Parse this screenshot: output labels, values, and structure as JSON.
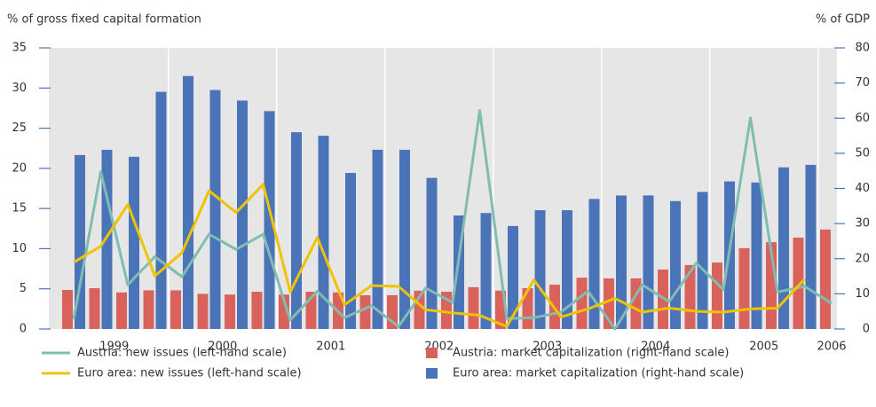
{
  "chart_data": {
    "type": "combo",
    "y_label": "% of gross fixed capital formation",
    "y2_label": "% of GDP",
    "categories": [
      "1999",
      null,
      null,
      null,
      "2000",
      null,
      null,
      null,
      "2001",
      null,
      null,
      null,
      "2002",
      null,
      null,
      null,
      "2003",
      null,
      null,
      null,
      "2004",
      null,
      null,
      null,
      "2005",
      null,
      null,
      null,
      "2006"
    ],
    "ylim": [
      0,
      35
    ],
    "yticks": [
      0,
      5,
      10,
      15,
      20,
      25,
      30,
      35
    ],
    "y2lim": [
      0,
      80
    ],
    "y2ticks": [
      0,
      10,
      20,
      30,
      40,
      50,
      60,
      70,
      80
    ],
    "series": [
      {
        "name": "Austria: new issues (left-hand scale)",
        "type": "line",
        "color": "#80bdb0",
        "values": [
          1.2,
          19.6,
          5.5,
          9,
          6.5,
          11.8,
          9.9,
          11.8,
          1.1,
          4.7,
          1.4,
          2.9,
          0.3,
          5.1,
          3.3,
          27.2,
          1.3,
          1.4,
          2.1,
          4.7,
          0,
          5.5,
          3.4,
          8.2,
          4.9,
          26.3,
          4.6,
          5.3,
          3.2
        ]
      },
      {
        "name": "Euro area: new issues (left-hand scale)",
        "type": "line",
        "color": "#f0c300",
        "values": [
          8.3,
          10.3,
          15.5,
          6.6,
          9.5,
          17.2,
          14.5,
          18,
          4.6,
          11.4,
          3,
          5.4,
          5.3,
          2.4,
          2,
          1.7,
          0.3,
          6.1,
          1.5,
          2.5,
          3.8,
          2.1,
          2.6,
          2.2,
          2.1,
          2.5,
          2.6,
          6.2,
          null
        ]
      },
      {
        "name": "Austria: market capitalization (right-hand scale)",
        "type": "bar",
        "axis": "y2",
        "color": "#d9625c",
        "values": [
          11.1,
          11.6,
          10.4,
          11,
          11,
          10,
          9.8,
          10.6,
          9.8,
          10.6,
          10.4,
          9.6,
          9.6,
          10.9,
          10.6,
          11.9,
          10.9,
          11.6,
          12.6,
          14.6,
          14.4,
          14.4,
          16.9,
          18.2,
          18.9,
          23,
          24.7,
          26,
          28.3
        ]
      },
      {
        "name": "Euro area: market capitalization (right-hand scale)",
        "type": "bar",
        "axis": "y2",
        "color": "#4b74b8",
        "values": [
          49.5,
          51,
          49,
          67.5,
          72,
          68,
          65,
          62,
          56,
          55,
          44.4,
          51,
          51,
          43,
          32.3,
          33,
          29.3,
          33.8,
          33.8,
          37,
          38,
          38,
          36.4,
          39,
          42,
          41.7,
          46,
          46.7,
          null
        ]
      }
    ]
  }
}
